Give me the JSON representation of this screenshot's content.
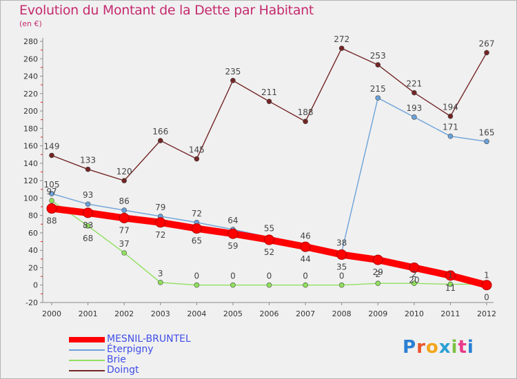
{
  "title": "Evolution du Montant de la Dette par Habitant",
  "subtitle": "(en €)",
  "logo": "Proxiti",
  "colors": {
    "title": "#c42a6e",
    "legend_text": "#3f4ee8"
  },
  "chart_data": {
    "type": "line",
    "x": [
      "2000",
      "2001",
      "2002",
      "2003",
      "2004",
      "2005",
      "2006",
      "2007",
      "2008",
      "2009",
      "2010",
      "2011",
      "2012"
    ],
    "ylim": [
      -20,
      280
    ],
    "yticks": [
      -20,
      0,
      20,
      40,
      60,
      80,
      100,
      120,
      140,
      160,
      180,
      200,
      220,
      240,
      260,
      280
    ],
    "grid": false,
    "legend_position": "bottom-left",
    "series": [
      {
        "name": "MESNIL-BRUNTEL",
        "color": "#ff0000",
        "values": [
          88,
          83,
          77,
          72,
          65,
          59,
          52,
          44,
          35,
          29,
          20,
          11,
          0
        ],
        "labels": [
          "88",
          "83",
          "77",
          "72",
          "65",
          "59",
          "52",
          "44",
          "35",
          "29",
          "20",
          "11",
          "0"
        ]
      },
      {
        "name": "Éterpigny",
        "color": "#6ba1d9",
        "values": [
          105,
          93,
          86,
          79,
          72,
          64,
          55,
          46,
          38,
          215,
          193,
          171,
          165
        ],
        "labels": [
          "105",
          "93",
          "86",
          "79",
          "72",
          "64",
          "55",
          "46",
          "38",
          "215",
          "193",
          "171",
          "165"
        ]
      },
      {
        "name": "Brie",
        "color": "#90e05d",
        "values": [
          97,
          68,
          37,
          3,
          0,
          0,
          0,
          0,
          0,
          2,
          2,
          1,
          1
        ],
        "labels": [
          "97",
          "68",
          "37",
          "3",
          "0",
          "0",
          "0",
          "0",
          "0",
          "2",
          "2",
          "1",
          "1"
        ]
      },
      {
        "name": "Doingt",
        "color": "#732525",
        "values": [
          149,
          133,
          120,
          166,
          145,
          235,
          211,
          188,
          272,
          253,
          221,
          194,
          267
        ],
        "labels": [
          "149",
          "133",
          "120",
          "166",
          "145",
          "235",
          "211",
          "188",
          "272",
          "253",
          "221",
          "194",
          "267"
        ]
      }
    ]
  }
}
